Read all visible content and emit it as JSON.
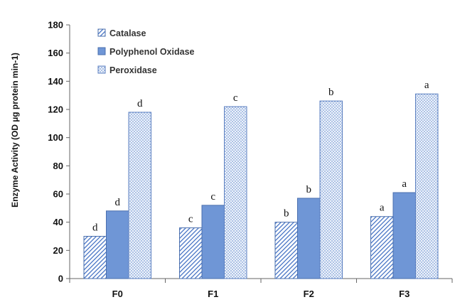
{
  "chart_data": {
    "type": "bar",
    "title": "",
    "xlabel": "",
    "ylabel": "Enzyme Activity (OD µg protein min-1)",
    "ylim": [
      0,
      180
    ],
    "yticks": [
      "0",
      "20",
      "40",
      "60",
      "80",
      "100",
      "120",
      "140",
      "160",
      "180"
    ],
    "categories": [
      "F0",
      "F1",
      "F2",
      "F3"
    ],
    "legend_position": "top-left",
    "series": [
      {
        "name": "Catalase",
        "values": [
          30,
          36,
          40,
          44
        ],
        "labels": [
          "d",
          "c",
          "b",
          "a"
        ],
        "pattern": "diagonal-hatch",
        "color": "#4472c4"
      },
      {
        "name": "Polyphenol Oxidase",
        "values": [
          48,
          52,
          57,
          61
        ],
        "labels": [
          "d",
          "c",
          "b",
          "a"
        ],
        "pattern": "solid",
        "color": "#6f96d6"
      },
      {
        "name": "Peroxidase",
        "values": [
          118,
          122,
          126,
          131
        ],
        "labels": [
          "d",
          "c",
          "b",
          "a"
        ],
        "pattern": "dotted",
        "color": "#b3c8ea"
      }
    ]
  }
}
